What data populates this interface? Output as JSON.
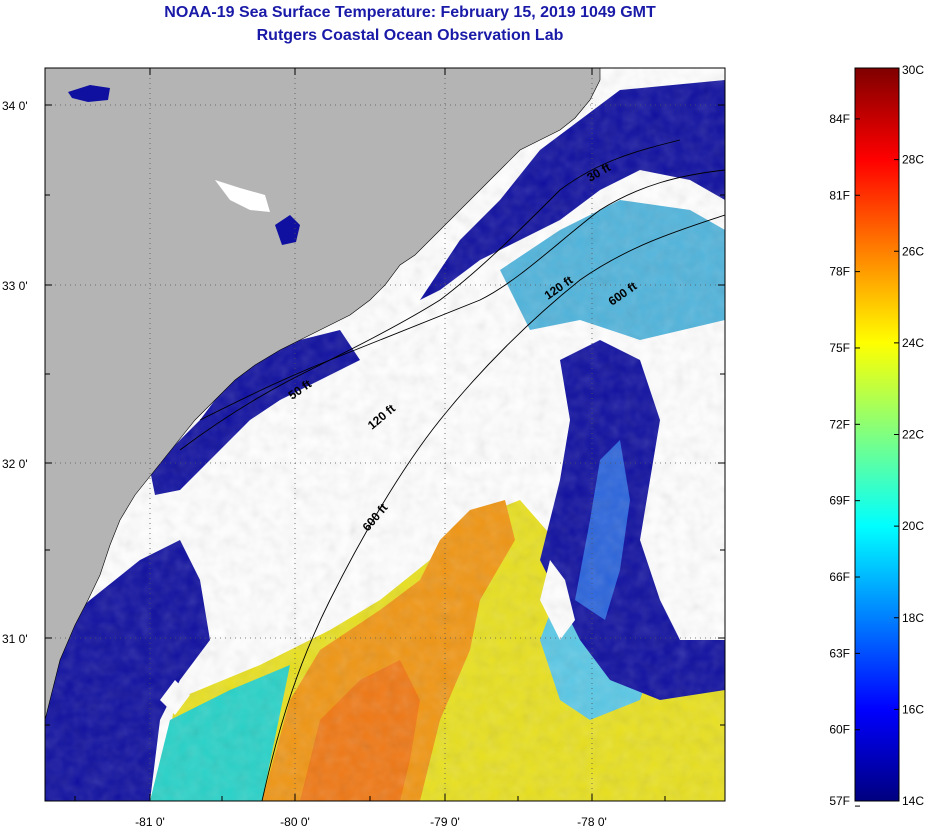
{
  "title": {
    "line1": "NOAA-19 Sea Surface Temperature:  February 15, 2019 1049 GMT",
    "line2": "Rutgers Coastal Ocean Observation Lab"
  },
  "map": {
    "lon_ticks": [
      "-81 0'",
      "-80 0'",
      "-79 0'",
      "-78 0'"
    ],
    "lat_ticks": [
      "34 0'",
      "33 0'",
      "32 0'",
      "31 0'"
    ],
    "contours": [
      "30 ft",
      "120 ft",
      "600 ft",
      "50 ft",
      "120 ft",
      "600 ft"
    ],
    "colors": {
      "land": "#b4b4b4",
      "cloud": "#ffffff",
      "cold": "#0a0a9a",
      "cool": "#1e5adc",
      "mid": "#1ee6dc",
      "warm": "#f0f01e",
      "hot": "#f09614"
    }
  },
  "colorbar": {
    "fahrenheit": [
      "84F",
      "81F",
      "78F",
      "75F",
      "72F",
      "69F",
      "66F",
      "63F",
      "60F",
      "57F"
    ],
    "celsius": [
      "30C",
      "28C",
      "26C",
      "24C",
      "22C",
      "20C",
      "18C",
      "16C",
      "14C"
    ],
    "range_c": [
      14,
      30
    ],
    "stops": [
      "#00007f",
      "#0000ff",
      "#0080ff",
      "#00ffff",
      "#80ff80",
      "#ffff00",
      "#ff8000",
      "#ff0000",
      "#7f0000"
    ]
  }
}
